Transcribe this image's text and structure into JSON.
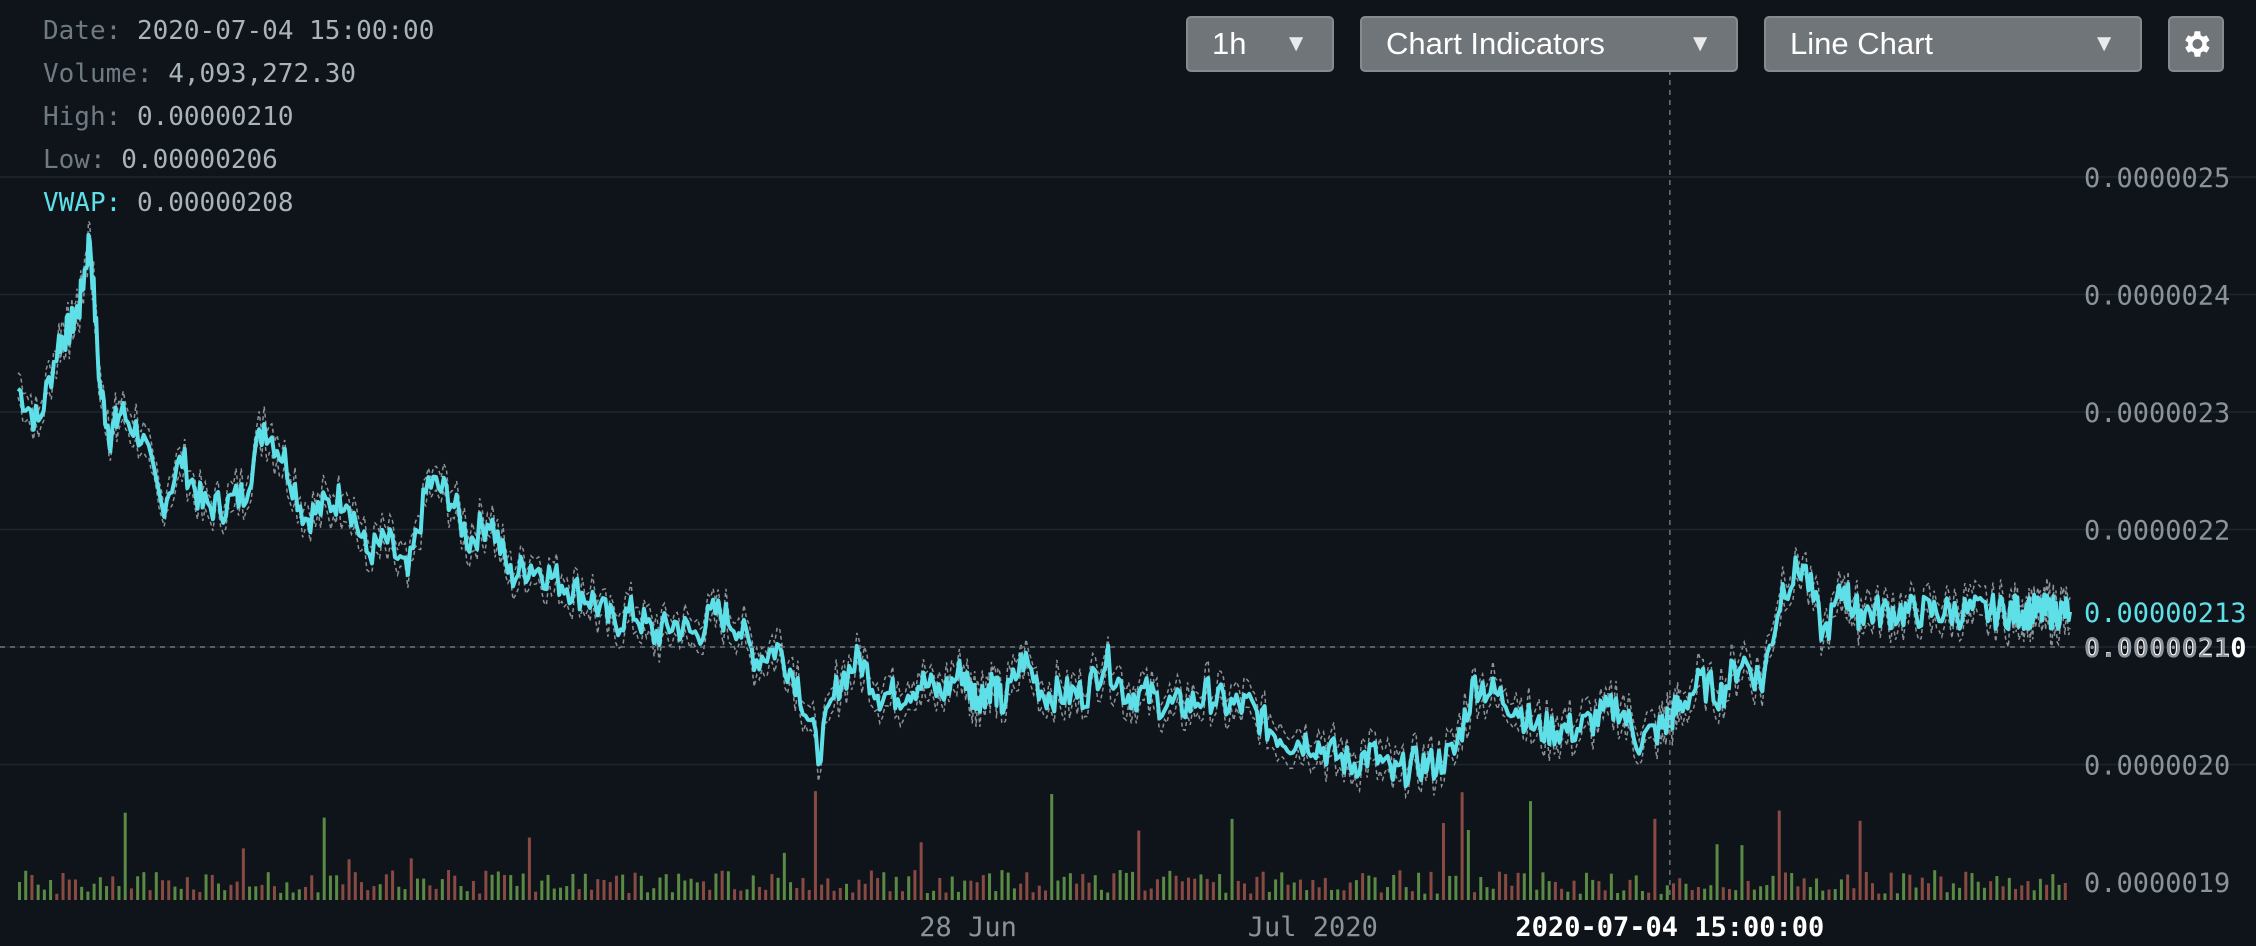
{
  "info": {
    "date_label": "Date:",
    "date_value": "2020-07-04 15:00:00",
    "volume_label": "Volume:",
    "volume_value": "4,093,272.30",
    "high_label": "High:",
    "high_value": "0.00000210",
    "low_label": "Low:",
    "low_value": "0.00000206",
    "vwap_label": "VWAP:",
    "vwap_value": "0.00000208"
  },
  "toolbar": {
    "interval": "1h",
    "indicators": "Chart Indicators",
    "chart_type": "Line Chart",
    "settings_icon": "gear-icon"
  },
  "colors": {
    "background": "#0e1419",
    "vwap_line": "#5fe0e8",
    "volume_up": "#5a8a44",
    "volume_down": "#8a4a44"
  },
  "chart_data": {
    "type": "line",
    "title": "",
    "xlabel": "",
    "ylabel": "",
    "ylim": [
      1.9e-06,
      2.6e-06
    ],
    "y_ticks": [
      "0.0000025",
      "0.0000024",
      "0.0000023",
      "0.0000022",
      "0.0000021",
      "0.0000020",
      "0.0000019"
    ],
    "y_tick_values": [
      2.5e-06,
      2.4e-06,
      2.3e-06,
      2.2e-06,
      2.1e-06,
      2e-06,
      1.9e-06
    ],
    "x_ticks": [
      {
        "label": "28 Jun",
        "t": 0.463
      },
      {
        "label": "Jul 2020",
        "t": 0.631
      }
    ],
    "current_price_label": "0.00000213",
    "current_price": 2.13e-06,
    "crosshair": {
      "t": 0.805,
      "price": 2.1e-06,
      "price_label": "0.00000210",
      "time_label": "2020-07-04 15:00:00"
    },
    "grid": true,
    "series": [
      {
        "values_t": [
          0,
          0.01,
          0.02,
          0.025,
          0.03,
          0.035,
          0.04,
          0.045,
          0.05,
          0.06,
          0.07,
          0.08,
          0.09,
          0.1,
          0.11,
          0.12,
          0.13,
          0.14,
          0.15,
          0.16,
          0.17,
          0.18,
          0.19,
          0.2,
          0.21,
          0.22,
          0.23,
          0.24,
          0.25,
          0.26,
          0.27,
          0.28,
          0.29,
          0.3,
          0.31,
          0.32,
          0.33,
          0.34,
          0.35,
          0.36,
          0.37,
          0.38,
          0.39,
          0.4,
          0.41,
          0.42,
          0.43,
          0.44,
          0.45,
          0.46,
          0.465,
          0.47,
          0.475,
          0.48,
          0.49,
          0.5,
          0.51,
          0.52,
          0.53,
          0.54,
          0.55,
          0.56,
          0.57,
          0.58,
          0.59,
          0.6,
          0.61,
          0.62,
          0.63,
          0.64,
          0.65,
          0.66,
          0.67,
          0.68,
          0.69,
          0.7,
          0.71,
          0.72,
          0.73,
          0.74,
          0.75,
          0.76,
          0.77,
          0.78,
          0.79,
          0.8,
          0.805,
          0.81,
          0.82,
          0.83,
          0.84,
          0.85,
          0.86,
          0.87,
          0.88,
          0.89,
          0.895,
          0.9,
          0.91,
          0.92,
          0.93,
          0.94,
          0.95,
          0.96,
          0.97,
          0.975,
          0.98,
          0.985,
          0.99,
          0.995,
          1.0
        ],
        "values": [
          2.32e-06,
          2.29e-06,
          2.36e-06,
          2.37e-06,
          2.39e-06,
          2.45e-06,
          2.32e-06,
          2.28e-06,
          2.3e-06,
          2.28e-06,
          2.22e-06,
          2.26e-06,
          2.22e-06,
          2.22e-06,
          2.23e-06,
          2.29e-06,
          2.26e-06,
          2.21e-06,
          2.22e-06,
          2.23e-06,
          2.18e-06,
          2.19e-06,
          2.16e-06,
          2.24e-06,
          2.23e-06,
          2.19e-06,
          2.21e-06,
          2.16e-06,
          2.17e-06,
          2.16e-06,
          2.15e-06,
          2.14e-06,
          2.12e-06,
          2.13e-06,
          2.11e-06,
          2.12e-06,
          2.11e-06,
          2.13e-06,
          2.12e-06,
          2.09e-06,
          2.1e-06,
          2.07e-06,
          2.01e-06,
          2.07e-06,
          2.09e-06,
          2.06e-06,
          2.06e-06,
          2.07e-06,
          2.06e-06,
          2.08e-06,
          2.06e-06,
          2.06e-06,
          2.07e-06,
          2.05e-06,
          2.09e-06,
          2.06e-06,
          2.06e-06,
          2.06e-06,
          2.09e-06,
          2.06e-06,
          2.06e-06,
          2.05e-06,
          2.05e-06,
          2.06e-06,
          2.05e-06,
          2.05e-06,
          2.03e-06,
          2.02e-06,
          2.02e-06,
          2.01e-06,
          2e-06,
          2.01e-06,
          1.99e-06,
          2e-06,
          2e-06,
          2.01e-06,
          2.07e-06,
          2.06e-06,
          2.05e-06,
          2.03e-06,
          2.03e-06,
          2.03e-06,
          2.04e-06,
          2.05e-06,
          2.02e-06,
          2.03e-06,
          2.04e-06,
          2.05e-06,
          2.07e-06,
          2.06e-06,
          2.09e-06,
          2.07e-06,
          2.15e-06,
          2.17e-06,
          2.11e-06,
          2.15e-06,
          2.13e-06,
          2.13e-06,
          2.13e-06,
          2.13e-06,
          2.13e-06,
          2.13e-06,
          2.13e-06,
          2.13e-06,
          2.13e-06,
          2.13e-06,
          2.13e-06,
          2.13e-06,
          2.13e-06,
          2.13e-06,
          2.13e-06
        ]
      }
    ]
  }
}
